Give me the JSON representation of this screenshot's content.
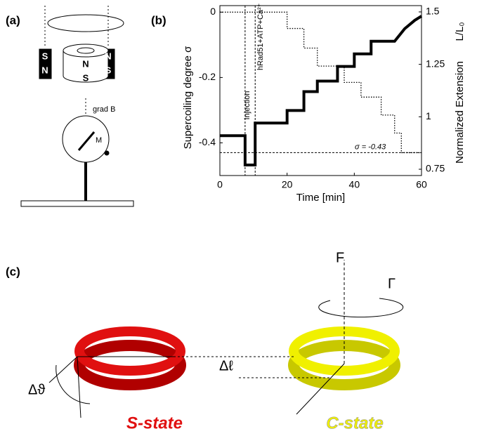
{
  "panel_labels": [
    "(a)",
    "(b)",
    "(c)"
  ],
  "panel_a": {
    "magnet_left": [
      "S",
      "N"
    ],
    "magnet_center": [
      "N",
      "S"
    ],
    "magnet_right": [
      "N",
      "S"
    ],
    "gradient_label": "grad B",
    "moment_label": "M"
  },
  "chart_data": {
    "type": "line",
    "x_label": "Time [min]",
    "y_label": "Supercoiling degree σ",
    "y2_label": "Normalized Extension",
    "y2_symbol": "L/L₀",
    "xlim": [
      0,
      60
    ],
    "xticks": [
      0,
      20,
      40,
      60
    ],
    "ylim": [
      -0.5,
      0.02
    ],
    "yticks": [
      -0.4,
      -0.2,
      0
    ],
    "y2lim": [
      0.72,
      1.53
    ],
    "y2ticks": [
      0.75,
      1,
      1.25,
      1.5
    ],
    "injection_x": [
      7.5,
      10.5
    ],
    "injection_label": "Injection",
    "injection_text": "hRad51+ATP+Ca²⁺",
    "hline": -0.43,
    "hline_label": "σ = -0.43",
    "series": [
      {
        "color": "#000000",
        "x": [
          0,
          20,
          20,
          25,
          25,
          29,
          29,
          37,
          37,
          42,
          42,
          48,
          48,
          52,
          52,
          54,
          54,
          60
        ],
        "values": [
          0,
          0,
          -0.05,
          -0.05,
          -0.11,
          -0.11,
          -0.165,
          -0.165,
          -0.215,
          -0.215,
          -0.26,
          -0.26,
          -0.315,
          -0.315,
          -0.37,
          -0.37,
          -0.43,
          -0.43
        ]
      },
      {
        "color": "#000000",
        "axis": "y2",
        "x": [
          0,
          7.5,
          7.5,
          10.5,
          10.5,
          20,
          20,
          25,
          25,
          29,
          29,
          35,
          35,
          40,
          40,
          45,
          45,
          52,
          55,
          58,
          60
        ],
        "values": [
          0.91,
          0.91,
          0.77,
          0.77,
          0.97,
          0.97,
          1.03,
          1.03,
          1.12,
          1.12,
          1.17,
          1.17,
          1.24,
          1.24,
          1.3,
          1.3,
          1.36,
          1.36,
          1.42,
          1.46,
          1.48
        ]
      }
    ]
  },
  "panel_c": {
    "force": "F",
    "torque": "Γ",
    "delta_length": "Δℓ",
    "delta_angle": "Δϑ",
    "s_state": "S-state",
    "c_state": "C-state"
  }
}
